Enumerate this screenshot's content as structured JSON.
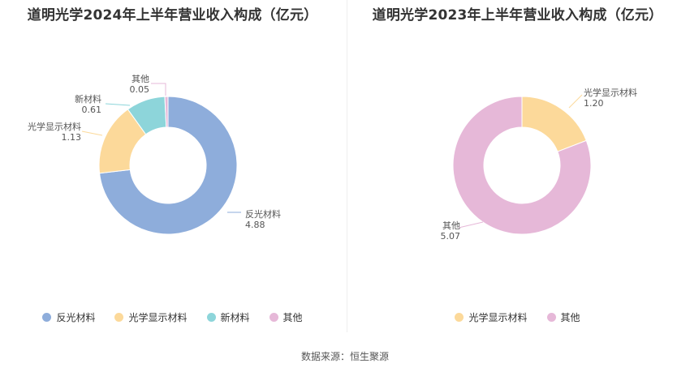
{
  "chart_data": [
    {
      "type": "pie",
      "title": "道明光学2024年上半年营业收入构成（亿元）",
      "categories": [
        "反光材料",
        "光学显示材料",
        "新材料",
        "其他"
      ],
      "values": [
        4.88,
        1.13,
        0.61,
        0.05
      ],
      "value_labels": [
        "4.88",
        "1.13",
        "0.61",
        "0.05"
      ],
      "colors": [
        "#8eaddb",
        "#fcd99a",
        "#8dd5da",
        "#e6b8d8"
      ],
      "legend": "bottom"
    },
    {
      "type": "pie",
      "title": "道明光学2023年上半年营业收入构成（亿元）",
      "categories": [
        "光学显示材料",
        "其他"
      ],
      "values": [
        1.2,
        5.07
      ],
      "value_labels": [
        "1.20",
        "5.07"
      ],
      "colors": [
        "#fcd99a",
        "#e6b8d8"
      ],
      "legend": "bottom"
    }
  ],
  "source": "数据来源：恒生聚源"
}
